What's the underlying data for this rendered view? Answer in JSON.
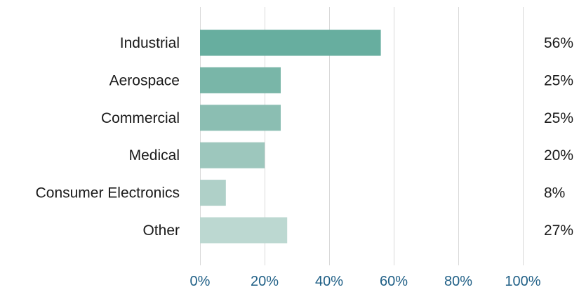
{
  "chart_data": {
    "type": "bar",
    "orientation": "horizontal",
    "categories": [
      "Industrial",
      "Aerospace",
      "Commercial",
      "Medical",
      "Consumer Electronics",
      "Other"
    ],
    "values": [
      56,
      25,
      25,
      20,
      8,
      27
    ],
    "value_labels": [
      "56%",
      "25%",
      "25%",
      "20%",
      "8%",
      "27%"
    ],
    "bar_colors": [
      "#67ae9f",
      "#79b6a8",
      "#8bbeb2",
      "#9dc7bd",
      "#afd0c8",
      "#bcd8d1"
    ],
    "xlim": [
      0,
      100
    ],
    "xticks": [
      0,
      20,
      40,
      60,
      80,
      100
    ],
    "xtick_labels": [
      "0%",
      "20%",
      "40%",
      "60%",
      "80%",
      "100%"
    ],
    "grid": "vertical",
    "title": "",
    "xlabel": "",
    "ylabel": "",
    "colors": {
      "grid": "#d9d9d9",
      "tick_text": "#1f5f86",
      "label_text": "#1a1a1a"
    }
  }
}
